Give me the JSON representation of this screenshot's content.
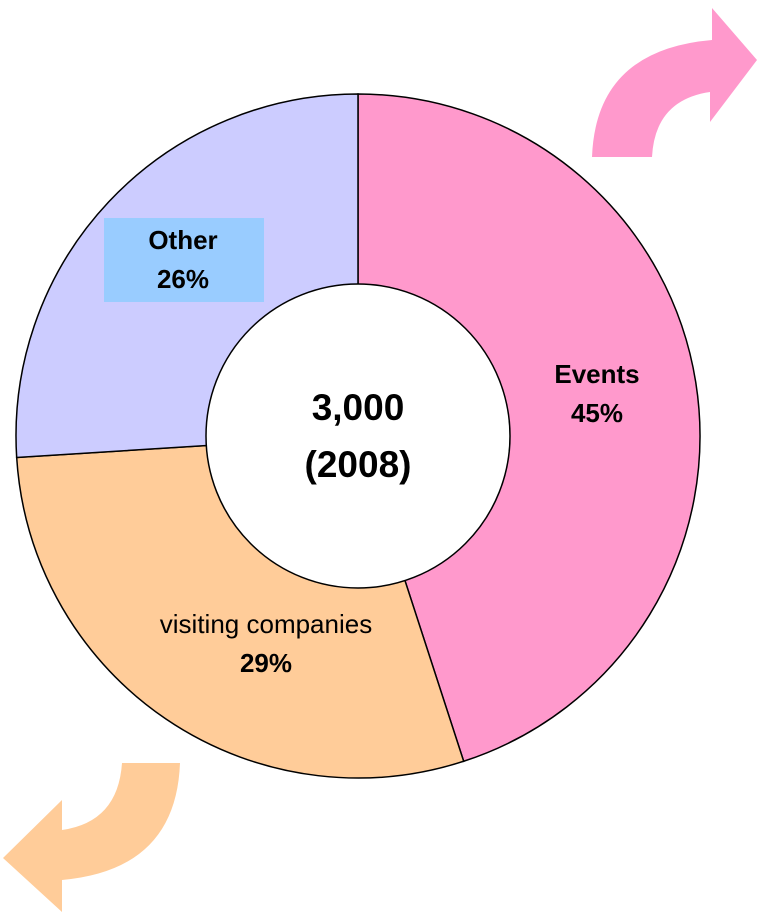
{
  "chart_data": {
    "type": "pie",
    "donut": true,
    "categories": [
      "Events",
      "visiting companies",
      "Other"
    ],
    "values": [
      45,
      29,
      26
    ],
    "value_labels": [
      "45%",
      "29%",
      "26%"
    ],
    "colors": [
      "#ff99cc",
      "#ffcc99",
      "#ccccff"
    ],
    "center_text": [
      "3,000",
      "(2008)"
    ]
  }
}
